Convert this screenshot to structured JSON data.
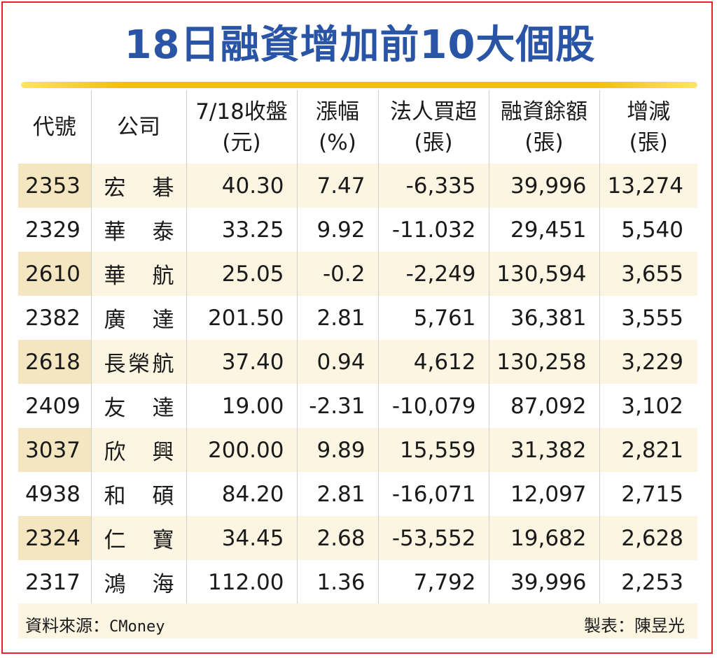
{
  "title": "18日融資增加前10大個股",
  "headers": [
    {
      "l1": "代號",
      "l2": ""
    },
    {
      "l1": "公司",
      "l2": ""
    },
    {
      "l1": "7/18收盤",
      "l2": "(元)"
    },
    {
      "l1": "漲幅",
      "l2": "(%)"
    },
    {
      "l1": "法人買超",
      "l2": "(張)"
    },
    {
      "l1": "融資餘額",
      "l2": "(張)"
    },
    {
      "l1": "增減",
      "l2": "(張)"
    }
  ],
  "rows": [
    {
      "code": "2353",
      "name": "宏　碁",
      "close": "40.30",
      "pct": "7.47",
      "inst": "-6,335",
      "margin": "39,996",
      "change": "13,274"
    },
    {
      "code": "2329",
      "name": "華　泰",
      "close": "33.25",
      "pct": "9.92",
      "inst": "-11.032",
      "margin": "29,451",
      "change": "5,540"
    },
    {
      "code": "2610",
      "name": "華　航",
      "close": "25.05",
      "pct": "-0.2",
      "inst": "-2,249",
      "margin": "130,594",
      "change": "3,655"
    },
    {
      "code": "2382",
      "name": "廣　達",
      "close": "201.50",
      "pct": "2.81",
      "inst": "5,761",
      "margin": "36,381",
      "change": "3,555"
    },
    {
      "code": "2618",
      "name": "長榮航",
      "close": "37.40",
      "pct": "0.94",
      "inst": "4,612",
      "margin": "130,258",
      "change": "3,229"
    },
    {
      "code": "2409",
      "name": "友　達",
      "close": "19.00",
      "pct": "-2.31",
      "inst": "-10,079",
      "margin": "87,092",
      "change": "3,102"
    },
    {
      "code": "3037",
      "name": "欣　興",
      "close": "200.00",
      "pct": "9.89",
      "inst": "15,559",
      "margin": "31,382",
      "change": "2,821"
    },
    {
      "code": "4938",
      "name": "和　碩",
      "close": "84.20",
      "pct": "2.81",
      "inst": "-16,071",
      "margin": "12,097",
      "change": "2,715"
    },
    {
      "code": "2324",
      "name": "仁　寶",
      "close": "34.45",
      "pct": "2.68",
      "inst": "-53,552",
      "margin": "19,682",
      "change": "2,628"
    },
    {
      "code": "2317",
      "name": "鴻　海",
      "close": "112.00",
      "pct": "1.36",
      "inst": "7,792",
      "margin": "39,996",
      "change": "2,253"
    }
  ],
  "footer": {
    "source_label": "資料來源：",
    "source_value": "CMoney",
    "author": "製表：陳昱光"
  },
  "colors": {
    "title": "#2a55a6",
    "rule": "#f2c200",
    "row_shade": "#fcf5e2",
    "code_shade": "#f4e6c0",
    "border": "#e8202a"
  }
}
